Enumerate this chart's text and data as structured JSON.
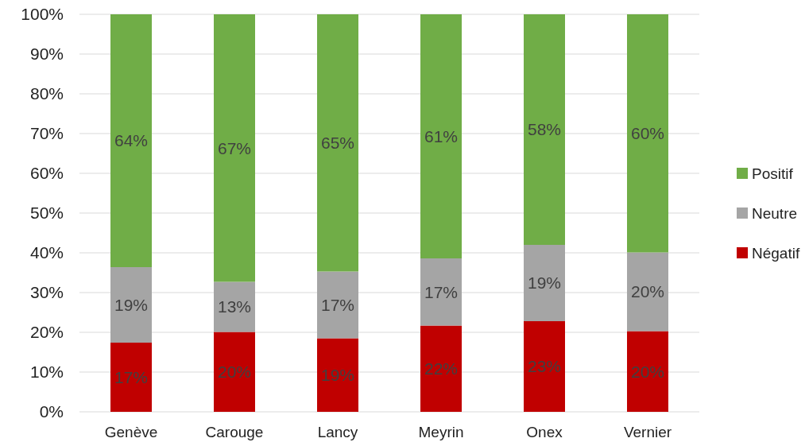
{
  "chart_data": {
    "type": "bar",
    "stacked": true,
    "categories": [
      "Genève",
      "Carouge",
      "Lancy",
      "Meyrin",
      "Onex",
      "Vernier"
    ],
    "series": [
      {
        "name": "Négatif",
        "color": "#c00000",
        "values": [
          17.4,
          20.1,
          18.5,
          21.7,
          22.8,
          20.3
        ],
        "value_labels": [
          "17%",
          "20%",
          "19%",
          "22%",
          "23%",
          "20%"
        ]
      },
      {
        "name": "Neutre",
        "color": "#a5a5a5",
        "values": [
          19.0,
          12.6,
          16.8,
          16.9,
          19.2,
          19.8
        ],
        "value_labels": [
          "19%",
          "13%",
          "17%",
          "17%",
          "19%",
          "20%"
        ]
      },
      {
        "name": "Positif",
        "color": "#70ad47",
        "values": [
          63.6,
          67.3,
          64.7,
          61.4,
          58,
          59.9
        ],
        "value_labels": [
          "64%",
          "67%",
          "65%",
          "61%",
          "58%",
          "60%"
        ]
      }
    ],
    "ylim": [
      0,
      100
    ],
    "yticks": [
      {
        "value": 0,
        "label": "0%"
      },
      {
        "value": 10,
        "label": "10%"
      },
      {
        "value": 20,
        "label": "20%"
      },
      {
        "value": 30,
        "label": "30%"
      },
      {
        "value": 40,
        "label": "40%"
      },
      {
        "value": 50,
        "label": "50%"
      },
      {
        "value": 60,
        "label": "60%"
      },
      {
        "value": 70,
        "label": "70%"
      },
      {
        "value": 80,
        "label": "80%"
      },
      {
        "value": 90,
        "label": "90%"
      },
      {
        "value": 100,
        "label": "100%"
      }
    ],
    "grid": "y",
    "legend": "right"
  }
}
